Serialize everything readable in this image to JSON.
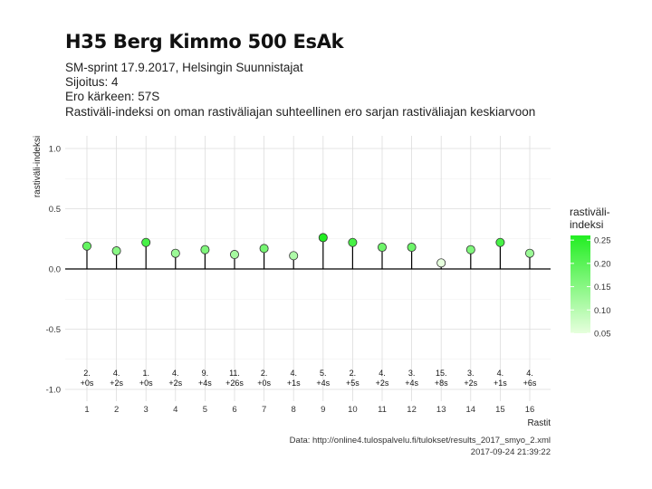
{
  "header": {
    "title": "H35 Berg Kimmo 500 EsAk",
    "subtitle_lines": [
      "SM-sprint 17.9.2017, Helsingin Suunnistajat",
      "Sijoitus: 4",
      "Ero kärkeen: 57S",
      "Rastiväli-indeksi on oman rastiväliajan suhteellinen ero sarjan rastiväliajan keskiarvoon"
    ]
  },
  "caption": {
    "source": "Data: http://online4.tulospalvelu.fi/tulokset/results_2017_smyo_2.xml",
    "timestamp": "2017-09-24 21:39:22"
  },
  "chart_data": {
    "type": "lollipop",
    "xlabel": "Rastit",
    "ylabel": "rastiväli-indeksi",
    "ylim": [
      -1.0,
      1.0
    ],
    "yticks": [
      "1.0",
      "0.5",
      "0.0",
      "-0.5",
      "-1.0"
    ],
    "ytick_values": [
      1.0,
      0.5,
      0.0,
      -0.5,
      -1.0
    ],
    "grid": true,
    "x": [
      1,
      2,
      3,
      4,
      5,
      6,
      7,
      8,
      9,
      10,
      11,
      12,
      13,
      14,
      15,
      16
    ],
    "values": [
      0.19,
      0.15,
      0.22,
      0.13,
      0.16,
      0.12,
      0.17,
      0.11,
      0.26,
      0.22,
      0.18,
      0.18,
      0.05,
      0.16,
      0.22,
      0.13
    ],
    "rank_labels": [
      "2.",
      "4.",
      "1.",
      "4.",
      "9.",
      "11.",
      "2.",
      "4.",
      "5.",
      "2.",
      "4.",
      "3.",
      "15.",
      "3.",
      "4.",
      "4."
    ],
    "diff_labels": [
      "+0s",
      "+2s",
      "+0s",
      "+2s",
      "+4s",
      "+26s",
      "+0s",
      "+1s",
      "+4s",
      "+5s",
      "+2s",
      "+4s",
      "+8s",
      "+2s",
      "+1s",
      "+6s"
    ],
    "legend": {
      "title_lines": [
        "rastiväli-",
        "indeksi"
      ],
      "placement": "right",
      "ticks": [
        "0.25",
        "0.20",
        "0.15",
        "0.10",
        "0.05"
      ],
      "tick_values": [
        0.25,
        0.2,
        0.15,
        0.1,
        0.05
      ],
      "range": [
        0.05,
        0.26
      ],
      "color_low": "#e6ffdd",
      "color_high": "#22ee22"
    }
  }
}
